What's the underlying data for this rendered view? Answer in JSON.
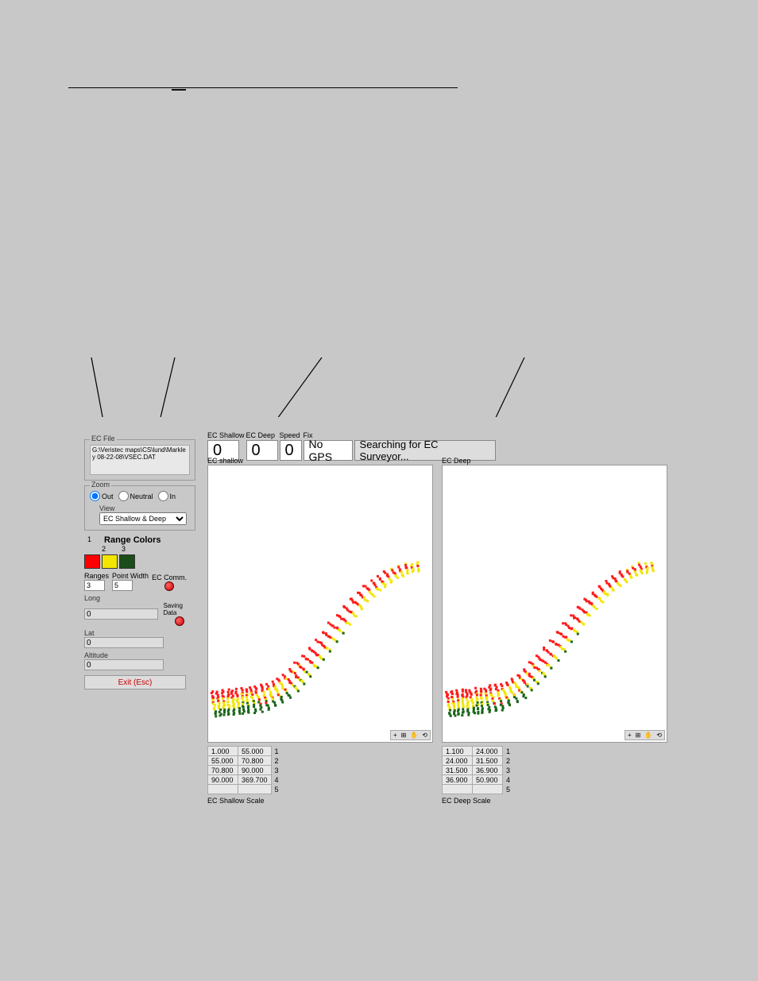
{
  "ec_file": {
    "group_label": "EC File",
    "path": "G:\\Veristec maps\\CS\\lund\\Markley 08-22-08\\VSEC.DAT"
  },
  "zoom": {
    "group_label": "Zoom",
    "options": {
      "out": "Out",
      "neutral": "Neutral",
      "in": "In"
    },
    "selected": "out"
  },
  "view": {
    "group_label": "View",
    "selected": "EC Shallow & Deep"
  },
  "range_colors": {
    "title": "Range Colors",
    "labels": [
      "1",
      "2",
      "3"
    ],
    "swatches": [
      "#ff0000",
      "#f2e600",
      "#1a4d1a"
    ]
  },
  "controls": {
    "ranges_label": "Ranges",
    "ranges_value": "3",
    "point_width_label": "Point Width",
    "point_width_value": "5",
    "ec_comm_label": "EC Comm.",
    "saving_data_label": "Saving Data",
    "led_color": "#cc0000"
  },
  "pos": {
    "long_label": "Long",
    "long_value": "0",
    "lat_label": "Lat",
    "lat_value": "0",
    "alt_label": "Altitude",
    "alt_value": "0"
  },
  "exit_label": "Exit (Esc)",
  "topbar": {
    "ec_shallow_label": "EC Shallow",
    "ec_shallow_value": "0",
    "ec_deep_label": "EC Deep",
    "ec_deep_value": "0",
    "speed_label": "Speed",
    "speed_value": "0",
    "fix_label": "Fix",
    "fix_value": "No GPS",
    "status": "Searching for EC Surveyor..."
  },
  "map_labels": {
    "shallow": "EC shallow",
    "deep": "EC Deep"
  },
  "scale_labels": {
    "shallow": "EC Shallow Scale",
    "deep": "EC Deep Scale"
  },
  "shallow_scale": [
    {
      "lo": "1.000",
      "hi": "55.000",
      "i": "1"
    },
    {
      "lo": "55.000",
      "hi": "70.800",
      "i": "2"
    },
    {
      "lo": "70.800",
      "hi": "90.000",
      "i": "3"
    },
    {
      "lo": "90.000",
      "hi": "369.700",
      "i": "4"
    },
    {
      "lo": "",
      "hi": "",
      "i": "5"
    }
  ],
  "deep_scale": [
    {
      "lo": "1.100",
      "hi": "24.000",
      "i": "1"
    },
    {
      "lo": "24.000",
      "hi": "31.500",
      "i": "2"
    },
    {
      "lo": "31.500",
      "hi": "36.900",
      "i": "3"
    },
    {
      "lo": "36.900",
      "hi": "50.900",
      "i": "4"
    },
    {
      "lo": "",
      "hi": "",
      "i": "5"
    }
  ],
  "scatter": {
    "colors": {
      "r": "#ff1a1a",
      "y": "#f2e600",
      "g": "#1a661a"
    },
    "point_size": 3,
    "xlim": [
      0,
      284
    ],
    "ylim": [
      0,
      350
    ],
    "shape_colors": [
      "rrrrryryyyygggg",
      "rrrrryyyyyygggg",
      "rrryryyygyggggg",
      "rrrrryyyrygrgggg",
      " rrryyyyyrygggg",
      " rrryrrrrygyyg",
      "  rrrrrrrryyyg",
      "   rrrrrrryyyg",
      "    rrrrrrryyy",
      "     rrrrryyyy",
      "      rrrrryyy",
      "       yrrryyy",
      "        yyryyy",
      "         yyyry"
    ],
    "path": [
      {
        "x": 6,
        "y": 300
      },
      {
        "x": 12,
        "y": 299
      },
      {
        "x": 18,
        "y": 298
      },
      {
        "x": 24,
        "y": 298
      },
      {
        "x": 30,
        "y": 298
      },
      {
        "x": 36,
        "y": 297
      },
      {
        "x": 42,
        "y": 296
      },
      {
        "x": 48,
        "y": 296
      },
      {
        "x": 55,
        "y": 295
      },
      {
        "x": 62,
        "y": 293
      },
      {
        "x": 70,
        "y": 291
      },
      {
        "x": 78,
        "y": 288
      },
      {
        "x": 86,
        "y": 284
      },
      {
        "x": 94,
        "y": 279
      },
      {
        "x": 102,
        "y": 272
      },
      {
        "x": 110,
        "y": 264
      },
      {
        "x": 118,
        "y": 255
      },
      {
        "x": 126,
        "y": 245
      },
      {
        "x": 134,
        "y": 235
      },
      {
        "x": 142,
        "y": 224
      },
      {
        "x": 150,
        "y": 213
      },
      {
        "x": 158,
        "y": 202
      },
      {
        "x": 166,
        "y": 191
      },
      {
        "x": 174,
        "y": 180
      },
      {
        "x": 182,
        "y": 170
      },
      {
        "x": 190,
        "y": 161
      },
      {
        "x": 198,
        "y": 153
      },
      {
        "x": 206,
        "y": 146
      },
      {
        "x": 214,
        "y": 140
      },
      {
        "x": 222,
        "y": 134
      },
      {
        "x": 230,
        "y": 129
      },
      {
        "x": 238,
        "y": 125
      },
      {
        "x": 246,
        "y": 122
      },
      {
        "x": 254,
        "y": 120
      },
      {
        "x": 262,
        "y": 119
      }
    ]
  }
}
